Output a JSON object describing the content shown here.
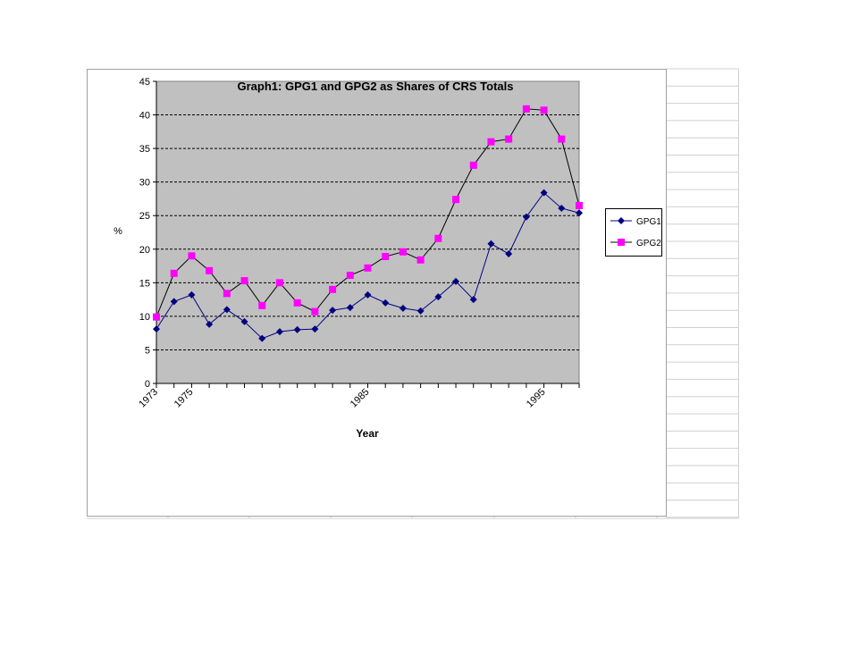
{
  "chart_data": {
    "type": "line",
    "title": "Graph1: GPG1 and GPG2 as Shares of CRS Totals",
    "x_label": "Year",
    "y_label": "%",
    "categories": [
      "1973",
      null,
      "1975",
      null,
      null,
      null,
      null,
      null,
      null,
      null,
      null,
      null,
      "1985",
      null,
      null,
      null,
      null,
      null,
      null,
      null,
      null,
      null,
      "1995",
      null,
      null
    ],
    "series": [
      {
        "name": "GPG1",
        "color": "#000080",
        "line_color": "#000080",
        "marker": "diamond",
        "values": [
          8.1,
          12.2,
          13.2,
          8.8,
          11.0,
          9.2,
          6.7,
          7.7,
          8.0,
          8.1,
          10.9,
          11.3,
          13.2,
          12.0,
          11.2,
          10.8,
          12.9,
          15.2,
          12.5,
          20.8,
          19.3,
          24.8,
          28.4,
          26.1,
          25.4
        ]
      },
      {
        "name": "GPG2",
        "color": "#ff00ff",
        "line_color": "#000000",
        "marker": "square",
        "values": [
          9.9,
          16.4,
          19.0,
          16.8,
          13.4,
          15.3,
          11.6,
          15.0,
          12.0,
          10.7,
          14.0,
          16.1,
          17.2,
          18.9,
          19.6,
          18.4,
          21.6,
          27.4,
          32.5,
          36.0,
          36.4,
          40.9,
          40.7,
          36.4,
          26.5
        ]
      }
    ],
    "ylim": [
      0,
      45
    ],
    "yticks": [
      0,
      5,
      10,
      15,
      20,
      25,
      30,
      35,
      40,
      45
    ],
    "grid": true,
    "legend": "right",
    "plot_background": "#c0c0c0"
  }
}
